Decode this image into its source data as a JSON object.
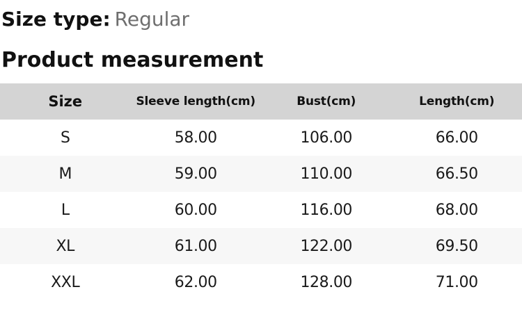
{
  "size_type": {
    "label": "Size type:",
    "value": "Regular"
  },
  "section_title": "Product measurement",
  "table": {
    "columns": [
      {
        "key": "size",
        "label": "Size"
      },
      {
        "key": "sleeve",
        "label": "Sleeve length(cm)"
      },
      {
        "key": "bust",
        "label": "Bust(cm)"
      },
      {
        "key": "length",
        "label": "Length(cm)"
      }
    ],
    "rows": [
      {
        "size": "S",
        "sleeve": "58.00",
        "bust": "106.00",
        "length": "66.00"
      },
      {
        "size": "M",
        "sleeve": "59.00",
        "bust": "110.00",
        "length": "66.50"
      },
      {
        "size": "L",
        "sleeve": "60.00",
        "bust": "116.00",
        "length": "68.00"
      },
      {
        "size": "XL",
        "sleeve": "61.00",
        "bust": "122.00",
        "length": "69.50"
      },
      {
        "size": "XXL",
        "sleeve": "62.00",
        "bust": "128.00",
        "length": "71.00"
      }
    ]
  },
  "colors": {
    "header_bg": "#d4d4d4",
    "alt_row_bg": "#f7f7f7",
    "muted_text": "#6e6e6e",
    "text": "#111111"
  }
}
